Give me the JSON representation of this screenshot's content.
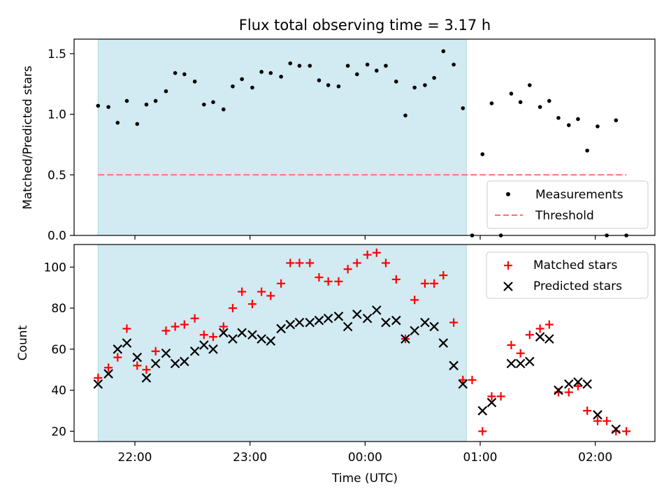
{
  "figure": {
    "title": "Flux total observing time = 3.17 h",
    "xlabel": "Time (UTC)",
    "x_ticks": [
      "22:00",
      "23:00",
      "00:00",
      "01:00",
      "02:00"
    ],
    "x_tick_hours": [
      22,
      23,
      24,
      25,
      26
    ],
    "shaded_interval_hours": [
      21.68,
      24.88
    ],
    "shade_color": "#add8e6"
  },
  "chart_data": [
    {
      "type": "scatter",
      "ylabel": "Matched/Predicted stars",
      "ylim": [
        0,
        1.62
      ],
      "y_ticks": [
        0,
        0.5,
        1.0,
        1.5
      ],
      "y_tick_labels": [
        "0.0",
        "0.5",
        "1.0",
        "1.5"
      ],
      "x_unit": "hours UTC (after 24 = next day)",
      "legend_position": "lower-right",
      "series": [
        {
          "name": "Measurements",
          "marker": "dot",
          "color": "#000000",
          "points": [
            [
              21.68,
              1.07
            ],
            [
              21.77,
              1.06
            ],
            [
              21.85,
              0.93
            ],
            [
              21.93,
              1.11
            ],
            [
              22.02,
              0.92
            ],
            [
              22.1,
              1.08
            ],
            [
              22.18,
              1.11
            ],
            [
              22.27,
              1.19
            ],
            [
              22.35,
              1.34
            ],
            [
              22.43,
              1.33
            ],
            [
              22.52,
              1.27
            ],
            [
              22.6,
              1.08
            ],
            [
              22.68,
              1.1
            ],
            [
              22.77,
              1.04
            ],
            [
              22.85,
              1.23
            ],
            [
              22.93,
              1.29
            ],
            [
              23.02,
              1.22
            ],
            [
              23.1,
              1.35
            ],
            [
              23.18,
              1.34
            ],
            [
              23.27,
              1.31
            ],
            [
              23.35,
              1.42
            ],
            [
              23.43,
              1.4
            ],
            [
              23.52,
              1.4
            ],
            [
              23.6,
              1.28
            ],
            [
              23.68,
              1.24
            ],
            [
              23.77,
              1.23
            ],
            [
              23.85,
              1.4
            ],
            [
              23.93,
              1.33
            ],
            [
              24.02,
              1.41
            ],
            [
              24.1,
              1.36
            ],
            [
              24.18,
              1.4
            ],
            [
              24.27,
              1.27
            ],
            [
              24.35,
              0.99
            ],
            [
              24.43,
              1.22
            ],
            [
              24.52,
              1.24
            ],
            [
              24.6,
              1.3
            ],
            [
              24.68,
              1.52
            ],
            [
              24.77,
              1.41
            ],
            [
              24.85,
              1.05
            ],
            [
              24.93,
              0.0
            ],
            [
              25.02,
              0.67
            ],
            [
              25.1,
              1.09
            ],
            [
              25.18,
              0.0
            ],
            [
              25.27,
              1.17
            ],
            [
              25.35,
              1.1
            ],
            [
              25.43,
              1.24
            ],
            [
              25.52,
              1.06
            ],
            [
              25.6,
              1.11
            ],
            [
              25.68,
              0.97
            ],
            [
              25.77,
              0.91
            ],
            [
              25.85,
              0.96
            ],
            [
              25.93,
              0.7
            ],
            [
              26.02,
              0.9
            ],
            [
              26.1,
              0.0
            ],
            [
              26.18,
              0.95
            ],
            [
              26.27,
              0.0
            ]
          ]
        },
        {
          "name": "Threshold",
          "style": "dashed",
          "color": "#ff7070",
          "y": 0.5,
          "x_range": [
            21.68,
            26.27
          ]
        }
      ]
    },
    {
      "type": "scatter",
      "ylabel": "Count",
      "ylim": [
        15,
        111
      ],
      "y_ticks": [
        20,
        40,
        60,
        80,
        100
      ],
      "y_tick_labels": [
        "20",
        "40",
        "60",
        "80",
        "100"
      ],
      "x_unit": "hours UTC (after 24 = next day)",
      "legend_position": "top-right",
      "series": [
        {
          "name": "Matched stars",
          "marker": "plus",
          "color": "#ff0000",
          "points": [
            [
              21.68,
              46
            ],
            [
              21.77,
              51
            ],
            [
              21.85,
              56
            ],
            [
              21.93,
              70
            ],
            [
              22.02,
              52
            ],
            [
              22.1,
              50
            ],
            [
              22.18,
              59
            ],
            [
              22.27,
              69
            ],
            [
              22.35,
              71
            ],
            [
              22.43,
              72
            ],
            [
              22.52,
              75
            ],
            [
              22.6,
              67
            ],
            [
              22.68,
              66
            ],
            [
              22.77,
              71
            ],
            [
              22.85,
              80
            ],
            [
              22.93,
              88
            ],
            [
              23.02,
              82
            ],
            [
              23.1,
              88
            ],
            [
              23.18,
              86
            ],
            [
              23.27,
              92
            ],
            [
              23.35,
              102
            ],
            [
              23.43,
              102
            ],
            [
              23.52,
              102
            ],
            [
              23.6,
              95
            ],
            [
              23.68,
              93
            ],
            [
              23.77,
              93
            ],
            [
              23.85,
              99
            ],
            [
              23.93,
              102
            ],
            [
              24.02,
              106
            ],
            [
              24.1,
              107
            ],
            [
              24.18,
              102
            ],
            [
              24.27,
              94
            ],
            [
              24.35,
              65
            ],
            [
              24.43,
              84
            ],
            [
              24.52,
              92
            ],
            [
              24.6,
              92
            ],
            [
              24.68,
              96
            ],
            [
              24.77,
              73
            ],
            [
              24.85,
              45
            ],
            [
              24.93,
              45
            ],
            [
              25.02,
              20
            ],
            [
              25.1,
              37
            ],
            [
              25.18,
              37
            ],
            [
              25.27,
              62
            ],
            [
              25.35,
              58
            ],
            [
              25.43,
              67
            ],
            [
              25.52,
              70
            ],
            [
              25.6,
              72
            ],
            [
              25.68,
              39
            ],
            [
              25.77,
              39
            ],
            [
              25.85,
              42
            ],
            [
              25.93,
              30
            ],
            [
              26.02,
              25
            ],
            [
              26.1,
              25
            ],
            [
              26.18,
              20
            ],
            [
              26.27,
              20
            ]
          ]
        },
        {
          "name": "Predicted stars",
          "marker": "x",
          "color": "#000000",
          "points": [
            [
              21.68,
              43
            ],
            [
              21.77,
              48
            ],
            [
              21.85,
              60
            ],
            [
              21.93,
              63
            ],
            [
              22.02,
              56
            ],
            [
              22.1,
              46
            ],
            [
              22.18,
              53
            ],
            [
              22.27,
              58
            ],
            [
              22.35,
              53
            ],
            [
              22.43,
              54
            ],
            [
              22.52,
              59
            ],
            [
              22.6,
              62
            ],
            [
              22.68,
              60
            ],
            [
              22.77,
              68
            ],
            [
              22.85,
              65
            ],
            [
              22.93,
              68
            ],
            [
              23.02,
              67
            ],
            [
              23.1,
              65
            ],
            [
              23.18,
              64
            ],
            [
              23.27,
              70
            ],
            [
              23.35,
              72
            ],
            [
              23.43,
              73
            ],
            [
              23.52,
              73
            ],
            [
              23.6,
              74
            ],
            [
              23.68,
              75
            ],
            [
              23.77,
              76
            ],
            [
              23.85,
              71
            ],
            [
              23.93,
              77
            ],
            [
              24.02,
              75
            ],
            [
              24.1,
              79
            ],
            [
              24.18,
              73
            ],
            [
              24.27,
              74
            ],
            [
              24.35,
              65
            ],
            [
              24.43,
              69
            ],
            [
              24.52,
              73
            ],
            [
              24.6,
              71
            ],
            [
              24.68,
              63
            ],
            [
              24.77,
              52
            ],
            [
              24.85,
              43
            ],
            [
              25.02,
              30
            ],
            [
              25.1,
              34
            ],
            [
              25.27,
              53
            ],
            [
              25.35,
              53
            ],
            [
              25.43,
              54
            ],
            [
              25.52,
              66
            ],
            [
              25.6,
              65
            ],
            [
              25.68,
              40
            ],
            [
              25.77,
              43
            ],
            [
              25.85,
              44
            ],
            [
              25.93,
              43
            ],
            [
              26.02,
              28
            ],
            [
              26.18,
              21
            ]
          ]
        }
      ]
    }
  ]
}
